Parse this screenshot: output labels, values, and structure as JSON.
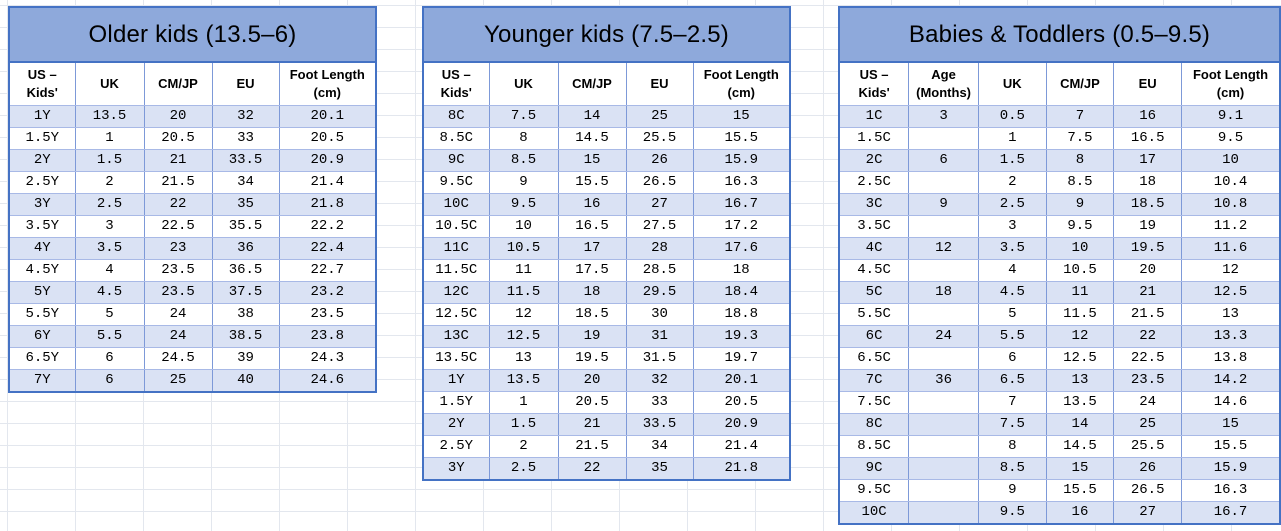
{
  "colors": {
    "title_band": "#8ea9db",
    "row_band": "#dae2f4",
    "table_border": "#4472c4"
  },
  "tables": [
    {
      "id": "older-kids",
      "title": "Older kids (13.5–6)",
      "columns": [
        "US –\nKids'",
        "UK",
        "CM/JP",
        "EU",
        "Foot Length\n(cm)"
      ],
      "rows": [
        [
          "1Y",
          "13.5",
          "20",
          "32",
          "20.1"
        ],
        [
          "1.5Y",
          "1",
          "20.5",
          "33",
          "20.5"
        ],
        [
          "2Y",
          "1.5",
          "21",
          "33.5",
          "20.9"
        ],
        [
          "2.5Y",
          "2",
          "21.5",
          "34",
          "21.4"
        ],
        [
          "3Y",
          "2.5",
          "22",
          "35",
          "21.8"
        ],
        [
          "3.5Y",
          "3",
          "22.5",
          "35.5",
          "22.2"
        ],
        [
          "4Y",
          "3.5",
          "23",
          "36",
          "22.4"
        ],
        [
          "4.5Y",
          "4",
          "23.5",
          "36.5",
          "22.7"
        ],
        [
          "5Y",
          "4.5",
          "23.5",
          "37.5",
          "23.2"
        ],
        [
          "5.5Y",
          "5",
          "24",
          "38",
          "23.5"
        ],
        [
          "6Y",
          "5.5",
          "24",
          "38.5",
          "23.8"
        ],
        [
          "6.5Y",
          "6",
          "24.5",
          "39",
          "24.3"
        ],
        [
          "7Y",
          "6",
          "25",
          "40",
          "24.6"
        ]
      ]
    },
    {
      "id": "younger-kids",
      "title": "Younger kids (7.5–2.5)",
      "columns": [
        "US –\nKids'",
        "UK",
        "CM/JP",
        "EU",
        "Foot Length\n(cm)"
      ],
      "rows": [
        [
          "8C",
          "7.5",
          "14",
          "25",
          "15"
        ],
        [
          "8.5C",
          "8",
          "14.5",
          "25.5",
          "15.5"
        ],
        [
          "9C",
          "8.5",
          "15",
          "26",
          "15.9"
        ],
        [
          "9.5C",
          "9",
          "15.5",
          "26.5",
          "16.3"
        ],
        [
          "10C",
          "9.5",
          "16",
          "27",
          "16.7"
        ],
        [
          "10.5C",
          "10",
          "16.5",
          "27.5",
          "17.2"
        ],
        [
          "11C",
          "10.5",
          "17",
          "28",
          "17.6"
        ],
        [
          "11.5C",
          "11",
          "17.5",
          "28.5",
          "18"
        ],
        [
          "12C",
          "11.5",
          "18",
          "29.5",
          "18.4"
        ],
        [
          "12.5C",
          "12",
          "18.5",
          "30",
          "18.8"
        ],
        [
          "13C",
          "12.5",
          "19",
          "31",
          "19.3"
        ],
        [
          "13.5C",
          "13",
          "19.5",
          "31.5",
          "19.7"
        ],
        [
          "1Y",
          "13.5",
          "20",
          "32",
          "20.1"
        ],
        [
          "1.5Y",
          "1",
          "20.5",
          "33",
          "20.5"
        ],
        [
          "2Y",
          "1.5",
          "21",
          "33.5",
          "20.9"
        ],
        [
          "2.5Y",
          "2",
          "21.5",
          "34",
          "21.4"
        ],
        [
          "3Y",
          "2.5",
          "22",
          "35",
          "21.8"
        ]
      ]
    },
    {
      "id": "babies-toddlers",
      "title": "Babies & Toddlers (0.5–9.5)",
      "columns": [
        "US –\nKids'",
        "Age\n(Months)",
        "UK",
        "CM/JP",
        "EU",
        "Foot Length\n(cm)"
      ],
      "rows": [
        [
          "1C",
          "3",
          "0.5",
          "7",
          "16",
          "9.1"
        ],
        [
          "1.5C",
          "",
          "1",
          "7.5",
          "16.5",
          "9.5"
        ],
        [
          "2C",
          "6",
          "1.5",
          "8",
          "17",
          "10"
        ],
        [
          "2.5C",
          "",
          "2",
          "8.5",
          "18",
          "10.4"
        ],
        [
          "3C",
          "9",
          "2.5",
          "9",
          "18.5",
          "10.8"
        ],
        [
          "3.5C",
          "",
          "3",
          "9.5",
          "19",
          "11.2"
        ],
        [
          "4C",
          "12",
          "3.5",
          "10",
          "19.5",
          "11.6"
        ],
        [
          "4.5C",
          "",
          "4",
          "10.5",
          "20",
          "12"
        ],
        [
          "5C",
          "18",
          "4.5",
          "11",
          "21",
          "12.5"
        ],
        [
          "5.5C",
          "",
          "5",
          "11.5",
          "21.5",
          "13"
        ],
        [
          "6C",
          "24",
          "5.5",
          "12",
          "22",
          "13.3"
        ],
        [
          "6.5C",
          "",
          "6",
          "12.5",
          "22.5",
          "13.8"
        ],
        [
          "7C",
          "36",
          "6.5",
          "13",
          "23.5",
          "14.2"
        ],
        [
          "7.5C",
          "",
          "7",
          "13.5",
          "24",
          "14.6"
        ],
        [
          "8C",
          "",
          "7.5",
          "14",
          "25",
          "15"
        ],
        [
          "8.5C",
          "",
          "8",
          "14.5",
          "25.5",
          "15.5"
        ],
        [
          "9C",
          "",
          "8.5",
          "15",
          "26",
          "15.9"
        ],
        [
          "9.5C",
          "",
          "9",
          "15.5",
          "26.5",
          "16.3"
        ],
        [
          "10C",
          "",
          "9.5",
          "16",
          "27",
          "16.7"
        ]
      ]
    }
  ]
}
